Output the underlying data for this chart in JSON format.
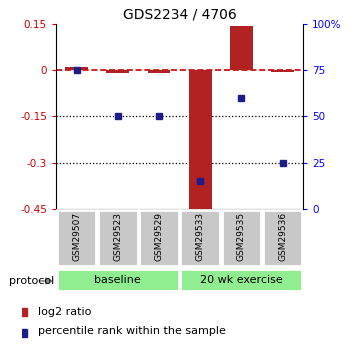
{
  "title": "GDS2234 / 4706",
  "samples": [
    "GSM29507",
    "GSM29523",
    "GSM29529",
    "GSM29533",
    "GSM29535",
    "GSM29536"
  ],
  "log2_ratio": [
    0.01,
    -0.01,
    -0.01,
    -0.46,
    0.145,
    -0.005
  ],
  "percentile_rank": [
    75,
    50,
    50,
    15,
    60,
    25
  ],
  "group_labels": [
    "baseline",
    "20 wk exercise"
  ],
  "group_ranges": [
    [
      0,
      2
    ],
    [
      3,
      5
    ]
  ],
  "ylim_left": [
    -0.45,
    0.15
  ],
  "ylim_right": [
    0,
    100
  ],
  "yticks_left": [
    0.15,
    0.0,
    -0.15,
    -0.3,
    -0.45
  ],
  "yticks_right": [
    100,
    75,
    50,
    25,
    0
  ],
  "bar_color": "#B22222",
  "dot_color": "#1C1C8C",
  "hline_color": "#CC0000",
  "dotted_line_color": "#000000",
  "xlabel_bg_color": "#C8C8C8",
  "group_bg_color": "#90EE90",
  "label_log2": "log2 ratio",
  "label_pct": "percentile rank within the sample",
  "protocol_label": "protocol"
}
